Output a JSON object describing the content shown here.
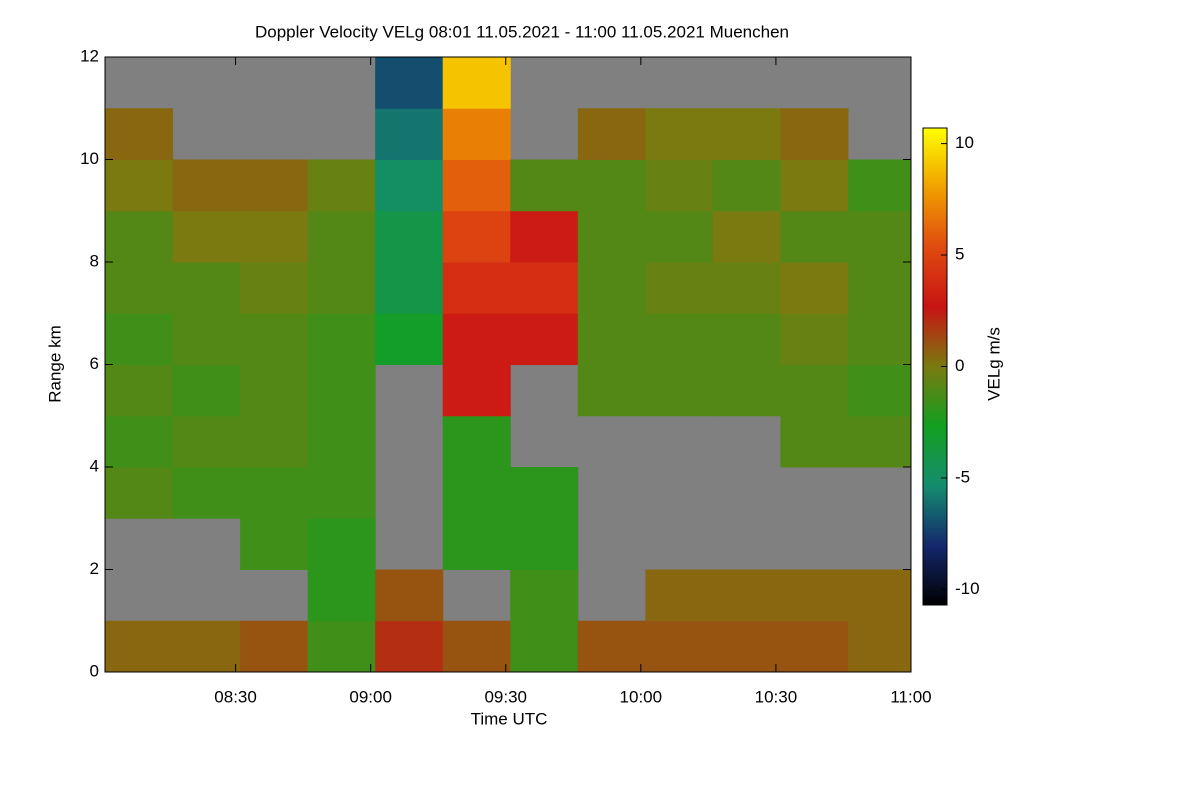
{
  "chart_data": {
    "type": "heatmap",
    "title": "Doppler Velocity VELg   08:01 11.05.2021 - 11:00 11.05.2021 Muenchen",
    "x_label": "Time UTC",
    "y_label": "Range km",
    "colorbar_label": "VELg m/s",
    "x_edges": [
      481,
      496,
      511,
      526,
      541,
      556,
      571,
      586,
      601,
      616,
      631,
      646,
      660
    ],
    "y_edges": [
      0,
      1,
      2,
      3,
      4,
      5,
      6,
      7,
      8,
      9,
      10,
      11,
      12
    ],
    "values": [
      [
        0.5,
        null,
        null,
        -1,
        -1.5,
        -1,
        -1.5,
        -1,
        -1,
        0,
        0.5,
        null
      ],
      [
        0.5,
        null,
        null,
        -1.5,
        -1,
        -1.5,
        -1,
        -1,
        0,
        0.5,
        null,
        null
      ],
      [
        1,
        null,
        -1.5,
        -1.5,
        -1,
        -1,
        -1,
        -0.5,
        0,
        0.5,
        null,
        null
      ],
      [
        -1.5,
        -2,
        -2,
        -1.5,
        -1.5,
        -1.5,
        -1.5,
        -1,
        -1,
        -0.5,
        null,
        null
      ],
      [
        2,
        1,
        null,
        null,
        null,
        null,
        -3,
        -4,
        -4,
        -5,
        -6,
        -7
      ],
      [
        1,
        null,
        -2,
        -2,
        -2,
        3,
        3,
        4,
        5,
        6,
        7,
        9
      ],
      [
        -1.5,
        -1.5,
        -2,
        -2,
        null,
        null,
        3,
        4,
        3,
        -1,
        null,
        null
      ],
      [
        1,
        null,
        null,
        null,
        null,
        -1,
        -1,
        -1,
        -1,
        -1,
        0.5,
        null
      ],
      [
        1,
        0.5,
        null,
        null,
        null,
        -1,
        -1,
        -0.5,
        -1,
        -0.5,
        0,
        null
      ],
      [
        1,
        0.5,
        null,
        null,
        null,
        -1,
        -1,
        -0.5,
        0,
        -1,
        0,
        null
      ],
      [
        1,
        0.5,
        null,
        null,
        -1,
        -1,
        -0.5,
        0,
        -1,
        0,
        0.5,
        null
      ],
      [
        0.5,
        0.5,
        null,
        null,
        -1,
        -1.5,
        -1,
        -1,
        -1,
        -1.5,
        null,
        null
      ]
    ],
    "xlim": [
      481,
      660
    ],
    "xticks": [
      {
        "value": 510,
        "label": "08:30"
      },
      {
        "value": 540,
        "label": "09:00"
      },
      {
        "value": 570,
        "label": "09:30"
      },
      {
        "value": 600,
        "label": "10:00"
      },
      {
        "value": 630,
        "label": "10:30"
      },
      {
        "value": 660,
        "label": "11:00"
      }
    ],
    "ylim": [
      0,
      12
    ],
    "yticks": [
      0,
      2,
      4,
      6,
      8,
      10,
      12
    ],
    "zlim": [
      -10.7,
      10.7
    ],
    "zticks": [
      -10,
      -5,
      0,
      5,
      10
    ],
    "colorscale": [
      "#000000",
      "#14286e",
      "#148c6e",
      "#12a020",
      "#7a7a10",
      "#c81414",
      "#e04a10",
      "#f0a000",
      "#ffff00"
    ],
    "missing_color": "#808080"
  }
}
